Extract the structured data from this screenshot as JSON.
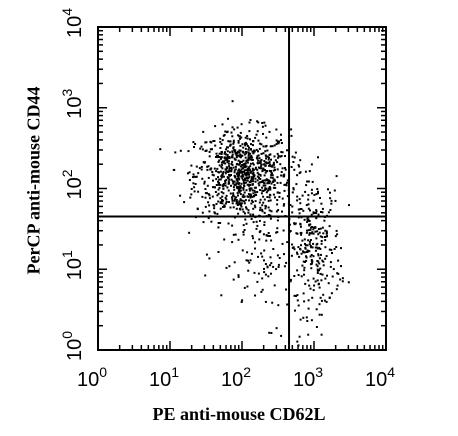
{
  "chart_data": {
    "type": "scatter",
    "xlabel": "PE anti-mouse CD62L",
    "ylabel": "PerCP anti-mouse CD44",
    "xscale": "log",
    "yscale": "log",
    "xlim": [
      1,
      10000
    ],
    "ylim": [
      1,
      10000
    ],
    "x_ticks": [
      {
        "base": "10",
        "exp": "0"
      },
      {
        "base": "10",
        "exp": "1"
      },
      {
        "base": "10",
        "exp": "2"
      },
      {
        "base": "10",
        "exp": "3"
      },
      {
        "base": "10",
        "exp": "4"
      }
    ],
    "y_ticks": [
      {
        "base": "10",
        "exp": "0"
      },
      {
        "base": "10",
        "exp": "1"
      },
      {
        "base": "10",
        "exp": "2"
      },
      {
        "base": "10",
        "exp": "3"
      },
      {
        "base": "10",
        "exp": "4"
      }
    ],
    "quadrant_gate": {
      "x": 450,
      "y": 45
    },
    "grid": false,
    "legend": "none",
    "colors": {
      "points": "#000000",
      "axes": "#000000",
      "gate": "#000000",
      "background": "#ffffff"
    },
    "populations": [
      {
        "center": [
          100,
          150
        ],
        "spread": [
          0.33,
          0.28
        ],
        "count": 900
      },
      {
        "center": [
          1000,
          20
        ],
        "spread": [
          0.18,
          0.42
        ],
        "count": 260
      },
      {
        "center": [
          250,
          15
        ],
        "spread": [
          0.35,
          0.4
        ],
        "count": 140
      }
    ]
  }
}
